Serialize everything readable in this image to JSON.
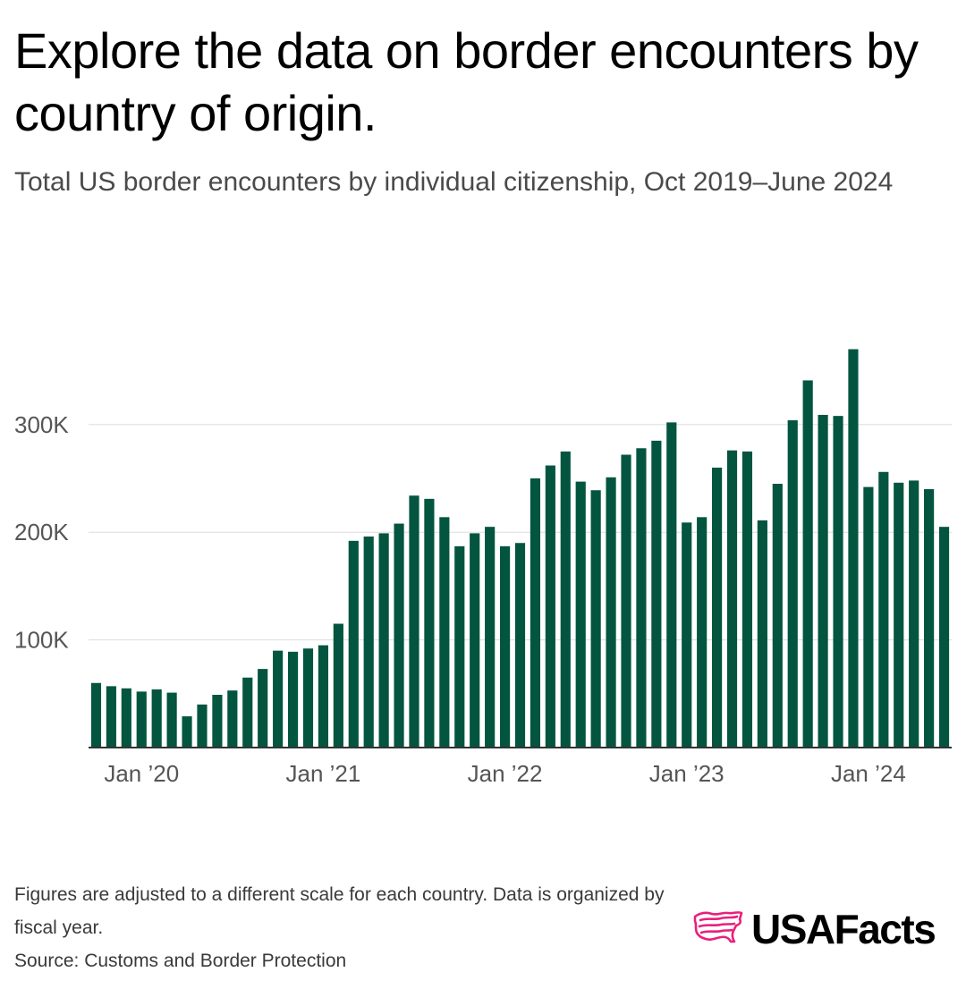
{
  "header": {
    "title": "Explore the data on border encounters by country of origin.",
    "subtitle": "Total US border encounters by individual citizenship, Oct 2019–June 2024"
  },
  "footer": {
    "note": "Figures are adjusted to a different scale for each country. Data is organized by fiscal year.",
    "source": "Source: Customs and Border Protection"
  },
  "brand": {
    "name": "USAFacts",
    "logo_icon": "us-flag-map-icon",
    "logo_color": "#e8207c"
  },
  "colors": {
    "bar": "#03553f",
    "gridline": "#dddddd",
    "axis": "#333333",
    "tick_text": "#555555"
  },
  "chart_data": {
    "type": "bar",
    "title": "Total US border encounters by individual citizenship, Oct 2019–June 2024",
    "xlabel": "",
    "ylabel": "",
    "ylim": [
      0,
      380000
    ],
    "grid": true,
    "y_ticks": [
      100000,
      200000,
      300000
    ],
    "y_tick_labels": [
      "100K",
      "200K",
      "300K"
    ],
    "x_tick_labels": [
      {
        "label": "Jan ’20",
        "index": 3
      },
      {
        "label": "Jan ’21",
        "index": 15
      },
      {
        "label": "Jan ’22",
        "index": 27
      },
      {
        "label": "Jan ’23",
        "index": 39
      },
      {
        "label": "Jan ’24",
        "index": 51
      }
    ],
    "categories": [
      "Oct 2019",
      "Nov 2019",
      "Dec 2019",
      "Jan 2020",
      "Feb 2020",
      "Mar 2020",
      "Apr 2020",
      "May 2020",
      "Jun 2020",
      "Jul 2020",
      "Aug 2020",
      "Sep 2020",
      "Oct 2020",
      "Nov 2020",
      "Dec 2020",
      "Jan 2021",
      "Feb 2021",
      "Mar 2021",
      "Apr 2021",
      "May 2021",
      "Jun 2021",
      "Jul 2021",
      "Aug 2021",
      "Sep 2021",
      "Oct 2021",
      "Nov 2021",
      "Dec 2021",
      "Jan 2022",
      "Feb 2022",
      "Mar 2022",
      "Apr 2022",
      "May 2022",
      "Jun 2022",
      "Jul 2022",
      "Aug 2022",
      "Sep 2022",
      "Oct 2022",
      "Nov 2022",
      "Dec 2022",
      "Jan 2023",
      "Feb 2023",
      "Mar 2023",
      "Apr 2023",
      "May 2023",
      "Jun 2023",
      "Jul 2023",
      "Aug 2023",
      "Sep 2023",
      "Oct 2023",
      "Nov 2023",
      "Dec 2023",
      "Jan 2024",
      "Feb 2024",
      "Mar 2024",
      "Apr 2024",
      "May 2024",
      "Jun 2024"
    ],
    "values": [
      60000,
      57000,
      55000,
      52000,
      54000,
      51000,
      29000,
      40000,
      49000,
      53000,
      65000,
      73000,
      90000,
      89000,
      92000,
      95000,
      115000,
      192000,
      196000,
      199000,
      208000,
      234000,
      231000,
      214000,
      187000,
      199000,
      205000,
      187000,
      190000,
      250000,
      262000,
      275000,
      247000,
      239000,
      251000,
      272000,
      278000,
      285000,
      302000,
      209000,
      214000,
      260000,
      276000,
      275000,
      211000,
      245000,
      304000,
      341000,
      309000,
      308000,
      370000,
      242000,
      256000,
      246000,
      248000,
      240000,
      205000
    ]
  }
}
